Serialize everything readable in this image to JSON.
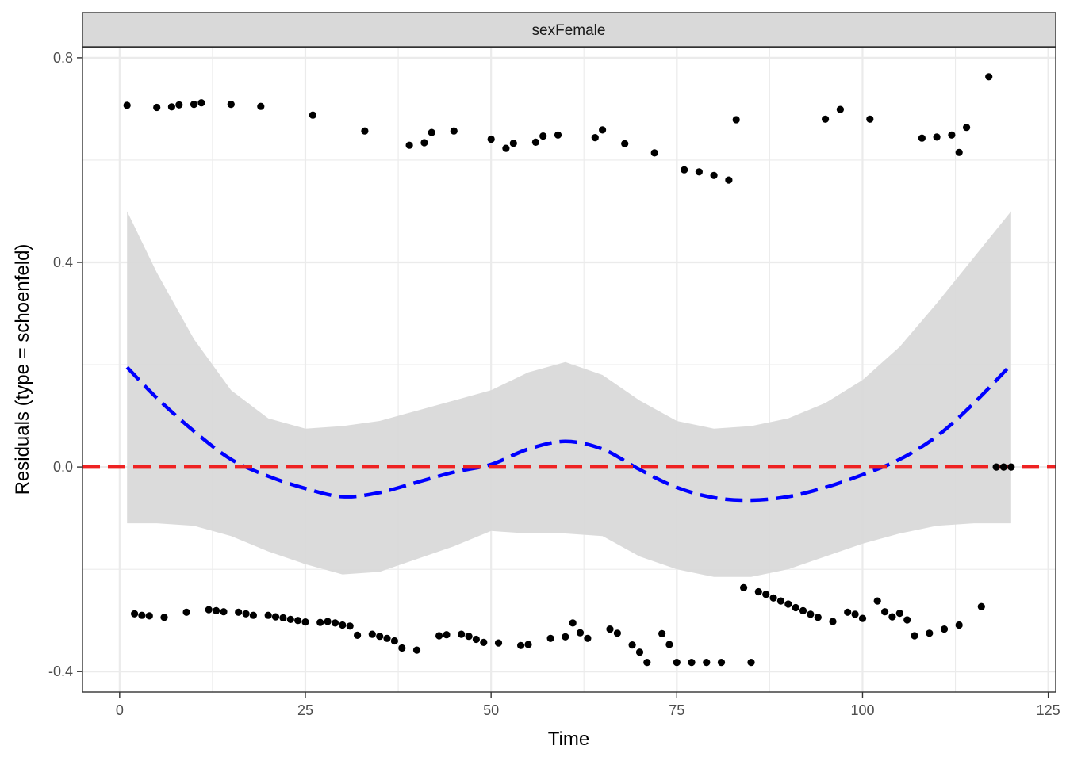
{
  "chart_data": {
    "type": "scatter",
    "facet_label": "sexFemale",
    "xlabel": "Time",
    "ylabel": "Residuals (type = schoenfeld)",
    "xlim": [
      -5,
      126
    ],
    "ylim": [
      -0.44,
      0.82
    ],
    "x_ticks": [
      0,
      25,
      50,
      75,
      100,
      125
    ],
    "x_tick_labels": [
      "0",
      "25",
      "50",
      "75",
      "100",
      "125"
    ],
    "y_ticks": [
      -0.4,
      0.0,
      0.4,
      0.8
    ],
    "y_tick_labels": [
      "-0.4",
      "0.0",
      "0.4",
      "0.8"
    ],
    "grid": true,
    "colors": {
      "points": "#000000",
      "smooth": "#0000ff",
      "reference": "#ee2222",
      "band": "#d9d9d9",
      "strip": "#d9d9d9",
      "grid": "#ebebeb"
    },
    "series": [
      {
        "kind": "points",
        "x": [
          1,
          5,
          7,
          8,
          10,
          11,
          15,
          19,
          26,
          33,
          39,
          41,
          42,
          45,
          50,
          52,
          53,
          56,
          57,
          59,
          64,
          65,
          68,
          72,
          76,
          78,
          80,
          82,
          83,
          95,
          97,
          101,
          108,
          110,
          112,
          113,
          114,
          117,
          2,
          3,
          4,
          6,
          9,
          12,
          13,
          14,
          16,
          17,
          18,
          20,
          21,
          22,
          23,
          24,
          25,
          27,
          28,
          29,
          30,
          31,
          32,
          34,
          35,
          36,
          37,
          38,
          40,
          43,
          44,
          46,
          47,
          48,
          49,
          51,
          54,
          55,
          58,
          60,
          61,
          62,
          63,
          66,
          67,
          69,
          70,
          71,
          73,
          74,
          75,
          77,
          79,
          81,
          84,
          85,
          86,
          87,
          88,
          89,
          90,
          91,
          92,
          93,
          94,
          96,
          98,
          99,
          100,
          102,
          103,
          104,
          105,
          106,
          107,
          109,
          111,
          113,
          116,
          118,
          119,
          120
        ],
        "y": [
          0.707,
          0.703,
          0.704,
          0.708,
          0.709,
          0.712,
          0.709,
          0.705,
          0.688,
          0.657,
          0.629,
          0.634,
          0.654,
          0.657,
          0.641,
          0.623,
          0.633,
          0.635,
          0.647,
          0.649,
          0.644,
          0.659,
          0.632,
          0.614,
          0.581,
          0.577,
          0.57,
          0.561,
          0.679,
          0.68,
          0.699,
          0.68,
          0.643,
          0.645,
          0.649,
          0.615,
          0.664,
          0.763,
          -0.287,
          -0.29,
          -0.291,
          -0.294,
          -0.284,
          -0.279,
          -0.281,
          -0.283,
          -0.284,
          -0.287,
          -0.29,
          -0.29,
          -0.293,
          -0.295,
          -0.298,
          -0.3,
          -0.303,
          -0.304,
          -0.302,
          -0.305,
          -0.309,
          -0.311,
          -0.329,
          -0.327,
          -0.331,
          -0.335,
          -0.34,
          -0.354,
          -0.358,
          -0.33,
          -0.328,
          -0.327,
          -0.331,
          -0.337,
          -0.343,
          -0.344,
          -0.349,
          -0.347,
          -0.335,
          -0.332,
          -0.305,
          -0.324,
          -0.335,
          -0.317,
          -0.325,
          -0.348,
          -0.362,
          -0.382,
          -0.326,
          -0.347,
          -0.382,
          -0.382,
          -0.382,
          -0.382,
          -0.236,
          -0.382,
          -0.244,
          -0.249,
          -0.256,
          -0.262,
          -0.268,
          -0.275,
          -0.281,
          -0.288,
          -0.294,
          -0.302,
          -0.284,
          -0.288,
          -0.296,
          -0.262,
          -0.283,
          -0.293,
          -0.286,
          -0.299,
          -0.33,
          -0.325,
          -0.317,
          -0.309,
          -0.273,
          0.0,
          0.0,
          0.0
        ]
      },
      {
        "kind": "smooth",
        "x": [
          1,
          5,
          10,
          15,
          20,
          25,
          30,
          35,
          40,
          45,
          50,
          55,
          60,
          65,
          70,
          75,
          80,
          85,
          90,
          95,
          100,
          105,
          110,
          115,
          120
        ],
        "y": [
          0.195,
          0.135,
          0.07,
          0.015,
          -0.018,
          -0.042,
          -0.058,
          -0.05,
          -0.03,
          -0.01,
          0.005,
          0.035,
          0.05,
          0.035,
          -0.005,
          -0.04,
          -0.06,
          -0.065,
          -0.058,
          -0.04,
          -0.015,
          0.015,
          0.06,
          0.125,
          0.2
        ],
        "band_upper": [
          0.5,
          0.38,
          0.25,
          0.15,
          0.095,
          0.075,
          0.08,
          0.09,
          0.11,
          0.13,
          0.15,
          0.185,
          0.205,
          0.18,
          0.13,
          0.09,
          0.075,
          0.08,
          0.095,
          0.125,
          0.17,
          0.235,
          0.32,
          0.41,
          0.5
        ],
        "band_lower": [
          -0.11,
          -0.11,
          -0.115,
          -0.135,
          -0.165,
          -0.19,
          -0.21,
          -0.205,
          -0.18,
          -0.155,
          -0.125,
          -0.13,
          -0.13,
          -0.135,
          -0.175,
          -0.2,
          -0.215,
          -0.215,
          -0.2,
          -0.175,
          -0.15,
          -0.13,
          -0.115,
          -0.11,
          -0.11
        ]
      },
      {
        "kind": "reference-line",
        "y": 0.0
      }
    ]
  }
}
